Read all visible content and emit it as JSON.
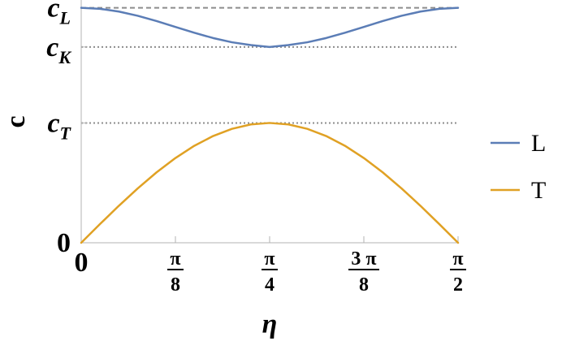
{
  "chart_data": {
    "type": "line",
    "xlabel": "η",
    "ylabel": "c",
    "xlim": [
      0,
      1.5708
    ],
    "ylim": [
      0,
      1.0
    ],
    "x_ticks": [
      {
        "value": 0,
        "num": "0",
        "den": ""
      },
      {
        "value": 0.3927,
        "num": "π",
        "den": "8"
      },
      {
        "value": 0.7854,
        "num": "π",
        "den": "4"
      },
      {
        "value": 1.1781,
        "num": "3 π",
        "den": "8"
      },
      {
        "value": 1.5708,
        "num": "π",
        "den": "2"
      }
    ],
    "y_ticks": [
      {
        "value": 0,
        "base": "0",
        "sub": ""
      },
      {
        "value": 0.4935,
        "base": "c",
        "sub": "T"
      },
      {
        "value": 0.8065,
        "base": "c",
        "sub": "K"
      },
      {
        "value": 0.9677,
        "base": "c",
        "sub": "L"
      }
    ],
    "reference_lines": [
      {
        "y": 0.9677,
        "style": "dashed"
      },
      {
        "y": 0.8065,
        "style": "dotted"
      },
      {
        "y": 0.4935,
        "style": "dotted"
      }
    ],
    "series": [
      {
        "name": "L",
        "color": "#5b7db6",
        "x": [
          0,
          0.0785,
          0.1571,
          0.2356,
          0.3142,
          0.3927,
          0.4712,
          0.5498,
          0.6283,
          0.7069,
          0.7854,
          0.8639,
          0.9425,
          1.021,
          1.0996,
          1.1781,
          1.2566,
          1.3352,
          1.4137,
          1.4923,
          1.5708
        ],
        "y": [
          0.9677,
          0.9637,
          0.9523,
          0.9349,
          0.9131,
          0.8891,
          0.8651,
          0.8433,
          0.8259,
          0.8145,
          0.8065,
          0.8145,
          0.8259,
          0.8433,
          0.8651,
          0.8891,
          0.9131,
          0.9349,
          0.9523,
          0.9637,
          0.9677
        ]
      },
      {
        "name": "T",
        "color": "#e0a124",
        "x": [
          0,
          0.0785,
          0.1571,
          0.2356,
          0.3142,
          0.3927,
          0.4712,
          0.5498,
          0.6283,
          0.7069,
          0.7854,
          0.8639,
          0.9425,
          1.021,
          1.0996,
          1.1781,
          1.2566,
          1.3352,
          1.4137,
          1.4923,
          1.5708
        ],
        "y": [
          0,
          0.0772,
          0.1525,
          0.224,
          0.2901,
          0.349,
          0.3993,
          0.4397,
          0.4692,
          0.4874,
          0.4935,
          0.4874,
          0.4692,
          0.4397,
          0.3993,
          0.349,
          0.2901,
          0.224,
          0.1525,
          0.0772,
          0
        ]
      }
    ],
    "legend": {
      "position": "right",
      "entries": [
        "L",
        "T"
      ]
    },
    "grid": false
  }
}
